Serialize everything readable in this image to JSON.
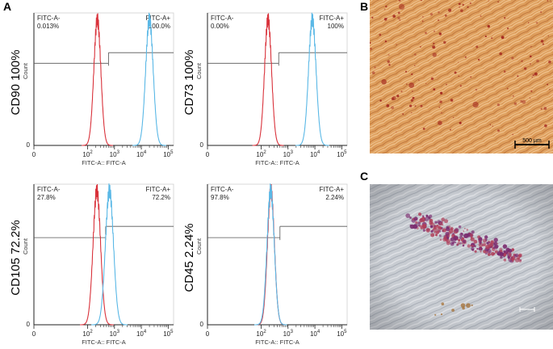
{
  "figure": {
    "panel_labels": {
      "a": "A",
      "b": "B",
      "c": "C"
    },
    "scale_bar_b": "500 µm"
  },
  "chart_data": [
    {
      "type": "line",
      "marker_label": "CD90 100%",
      "xlabel": "FITC-A:: FITC-A",
      "ylabel": "Count",
      "xscale": "log",
      "xticks": [
        "0",
        "10^2",
        "10^3",
        "10^4",
        "10^5"
      ],
      "yticks": [
        "0"
      ],
      "gates": {
        "neg_label": "FITC-A-",
        "neg_value": "0.013%",
        "pos_label": "FITC-A+",
        "pos_value": "100.0%",
        "boundary": 600
      },
      "series": [
        {
          "color": "#d9323b",
          "peak": 230,
          "width": 0.13
        },
        {
          "color": "#5ab8e6",
          "peak": 20000,
          "width": 0.14
        }
      ]
    },
    {
      "type": "line",
      "marker_label": "CD73 100%",
      "xlabel": "FITC-A:: FITC-A",
      "ylabel": "Count",
      "xscale": "log",
      "xticks": [
        "0",
        "10^2",
        "10^3",
        "10^4",
        "10^5"
      ],
      "yticks": [
        "0"
      ],
      "gates": {
        "neg_label": "FITC-A-",
        "neg_value": "0.00%",
        "pos_label": "FITC-A+",
        "pos_value": "100%",
        "boundary": 450
      },
      "series": [
        {
          "color": "#d9323b",
          "peak": 180,
          "width": 0.13
        },
        {
          "color": "#5ab8e6",
          "peak": 8000,
          "width": 0.14
        }
      ]
    },
    {
      "type": "line",
      "marker_label": "CD105 72.2%",
      "xlabel": "FITC-A:: FITC-A",
      "ylabel": "Count",
      "xscale": "log",
      "xticks": [
        "0",
        "10^2",
        "10^3",
        "10^4",
        "10^5"
      ],
      "yticks": [
        "0"
      ],
      "gates": {
        "neg_label": "FITC-A-",
        "neg_value": "27.8%",
        "pos_label": "FITC-A+",
        "pos_value": "72.2%",
        "boundary": 470
      },
      "series": [
        {
          "color": "#d9323b",
          "peak": 220,
          "width": 0.14
        },
        {
          "color": "#5ab8e6",
          "peak": 650,
          "width": 0.15
        }
      ]
    },
    {
      "type": "line",
      "marker_label": "CD45 2.24%",
      "xlabel": "FITC-A:: FITC-A",
      "ylabel": "Count",
      "xscale": "log",
      "xticks": [
        "0",
        "10^2",
        "10^3",
        "10^4",
        "10^5"
      ],
      "yticks": [
        "0"
      ],
      "gates": {
        "neg_label": "FITC-A-",
        "neg_value": "97.8%",
        "pos_label": "FITC-A+",
        "pos_value": "2.24%",
        "boundary": 500
      },
      "series": [
        {
          "color": "#d9323b",
          "peak": 230,
          "width": 0.13
        },
        {
          "color": "#5ab8e6",
          "peak": 225,
          "width": 0.135
        }
      ]
    }
  ]
}
